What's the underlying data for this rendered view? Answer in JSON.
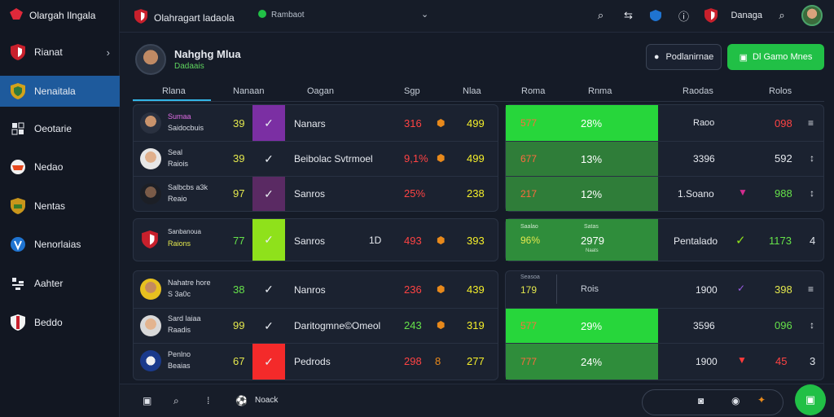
{
  "app": {
    "title": "Olargah Ilngala"
  },
  "sidebar": {
    "items": [
      {
        "label": "Rianat"
      },
      {
        "label": "Nenaitala"
      },
      {
        "label": "Oeotarie"
      },
      {
        "label": "Nedao"
      },
      {
        "label": "Nentas"
      },
      {
        "label": "Nenorlaias"
      },
      {
        "label": "Aahter"
      },
      {
        "label": "Beddo"
      }
    ]
  },
  "topbar": {
    "title": "Olahragart ladaola",
    "mid": "Rambaot",
    "right_label": "Danaga"
  },
  "profile": {
    "name": "Nahghg Mlua",
    "sub": "Dadaais"
  },
  "buttons": {
    "outline": "Podlanirnae",
    "green": "Dl Gamo Mnes"
  },
  "headers": [
    "Rlana",
    "Nanaan",
    "Oagan",
    "Sgp",
    "Nlaa",
    "Roma",
    "Rnma",
    "Raodas",
    "Rolos"
  ],
  "rows": [
    {
      "n1": "Sumaa",
      "n2": "Saidocbuis",
      "score": "39",
      "label": "Nanars",
      "r": "316",
      "g": "499",
      "v1": "577",
      "v2": "28%",
      "c": "Raoo",
      "e": "098",
      "m": "≡"
    },
    {
      "n1": "Seal",
      "n2": "Raiois",
      "score": "39",
      "label": "Beibolac Svtrmoel",
      "r": "9,1%",
      "g": "499",
      "v1": "677",
      "v2": "13%",
      "c": "3396",
      "e": "592",
      "m": "↕"
    },
    {
      "n1": "Salbcbs a3k",
      "n2": "Reaio",
      "score": "97",
      "label": "Sanros",
      "r": "25%",
      "g": "238",
      "v1": "217",
      "v2": "12%",
      "c": "1.Soano",
      "e": "988",
      "m": "↕"
    },
    {
      "n1": "Sanbanoua",
      "n2": "Raions",
      "score": "77",
      "label": "Sanros",
      "mid": "1D",
      "r": "493",
      "g": "393",
      "v1": "96%",
      "v2": "2979",
      "c": "Pentalado",
      "e": "1173",
      "m": "4",
      "top": "Saalao",
      "topm": "Satas",
      "sub": "Naats"
    },
    {
      "n1": "Nahatre hore",
      "n2": "S 3a0c",
      "score": "38",
      "label": "Nanros",
      "r": "236",
      "g": "439",
      "v1": "179",
      "v2": "Rois",
      "c": "1900",
      "e": "398",
      "m": "≡",
      "top": "Seasoa"
    },
    {
      "n1": "Sard laiaa",
      "n2": "Raadis",
      "score": "99",
      "label": "Daritogmne©Omeol",
      "r": "243",
      "g": "319",
      "v1": "577",
      "v2": "29%",
      "c": "3596",
      "e": "096",
      "m": "↕"
    },
    {
      "n1": "Penlno",
      "n2": "Beaias",
      "score": "67",
      "label": "Pedrods",
      "r": "298",
      "rb": "8",
      "g": "277",
      "v1": "777",
      "v2": "24%",
      "c": "1900",
      "e": "45",
      "m": "3"
    }
  ],
  "bottom": {
    "label": "Noack"
  },
  "colors": {
    "accent": "#21c046",
    "active": "#1e5a9c",
    "purple": "#7b2fa3",
    "lime": "#8fe11b",
    "red": "#f42a2a"
  }
}
